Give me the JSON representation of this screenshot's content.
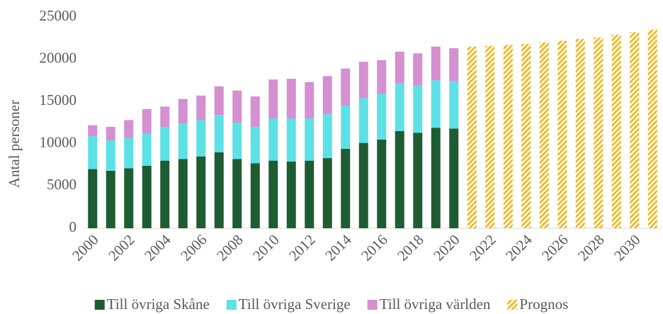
{
  "chart_data": {
    "type": "stacked_bar",
    "y_label": "Antal personer",
    "categories": [
      "2000",
      null,
      "2002",
      null,
      "2004",
      null,
      "2006",
      null,
      "2008",
      null,
      "2010",
      null,
      "2012",
      null,
      "2014",
      null,
      "2016",
      null,
      "2018",
      null,
      "2020",
      null,
      "2022",
      null,
      "2024",
      null,
      "2026",
      null,
      "2028",
      null,
      "2030",
      null
    ],
    "series": [
      {
        "name": "Till övriga Skåne",
        "color": "#1e5c32",
        "values": [
          7000,
          6800,
          7100,
          7400,
          8000,
          8200,
          8500,
          9000,
          8200,
          7700,
          8000,
          7900,
          8000,
          8300,
          9400,
          10100,
          10500,
          11500,
          11300,
          11900,
          11800,
          null,
          null,
          null,
          null,
          null,
          null,
          null,
          null,
          null,
          null,
          null
        ]
      },
      {
        "name": "Till övriga Sverige",
        "color": "#5ce1e6",
        "values": [
          3900,
          3600,
          3600,
          3800,
          4000,
          4200,
          4300,
          4400,
          4300,
          4300,
          5000,
          5100,
          5000,
          5200,
          5100,
          5300,
          5400,
          5600,
          5600,
          5600,
          5600,
          null,
          null,
          null,
          null,
          null,
          null,
          null,
          null,
          null,
          null,
          null
        ]
      },
      {
        "name": "Till övriga världen",
        "color": "#d490d0",
        "values": [
          1300,
          1600,
          2100,
          2900,
          2400,
          2900,
          2900,
          3400,
          3800,
          3600,
          4600,
          4700,
          4300,
          4500,
          4400,
          4300,
          4000,
          3800,
          3800,
          4000,
          3900,
          null,
          null,
          null,
          null,
          null,
          null,
          null,
          null,
          null,
          null,
          null
        ]
      },
      {
        "name": "Prognos",
        "color": "#f2b619",
        "pattern": "hatch",
        "values": [
          null,
          null,
          null,
          null,
          null,
          null,
          null,
          null,
          null,
          null,
          null,
          null,
          null,
          null,
          null,
          null,
          null,
          null,
          null,
          null,
          null,
          21500,
          21600,
          21700,
          21800,
          22000,
          22200,
          22400,
          22600,
          22900,
          23200,
          23500
        ]
      }
    ],
    "ylim": [
      0,
      25000
    ],
    "yticks": [
      0,
      5000,
      10000,
      15000,
      20000,
      25000
    ],
    "grid": false,
    "legend": "bottom"
  }
}
